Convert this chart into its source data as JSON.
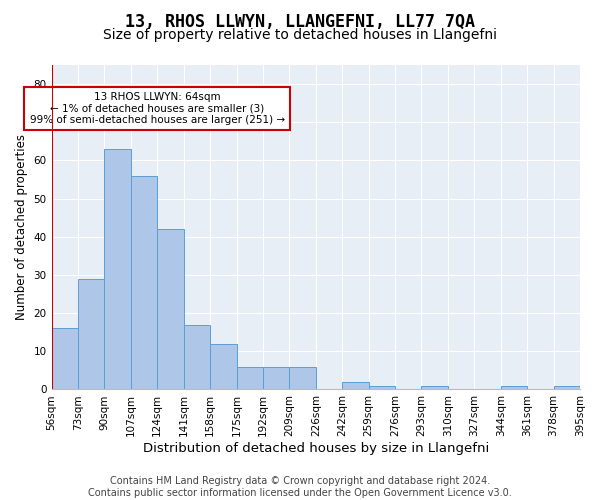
{
  "title": "13, RHOS LLWYN, LLANGEFNI, LL77 7QA",
  "subtitle": "Size of property relative to detached houses in Llangefni",
  "xlabel": "Distribution of detached houses by size in Llangefni",
  "ylabel": "Number of detached properties",
  "bar_values": [
    16,
    29,
    63,
    56,
    42,
    17,
    12,
    6,
    6,
    6,
    0,
    2,
    1,
    0,
    1,
    0,
    0,
    1,
    0,
    1
  ],
  "bar_labels": [
    "56sqm",
    "73sqm",
    "90sqm",
    "107sqm",
    "124sqm",
    "141sqm",
    "158sqm",
    "175sqm",
    "192sqm",
    "209sqm",
    "226sqm",
    "242sqm",
    "259sqm",
    "276sqm",
    "293sqm",
    "310sqm",
    "327sqm",
    "344sqm",
    "361sqm",
    "378sqm"
  ],
  "extra_label": "395sqm",
  "bar_color": "#aec6e8",
  "bar_edge_color": "#5a9fd4",
  "bg_color": "#e8eef6",
  "grid_color": "#ffffff",
  "ylim_max": 85,
  "yticks": [
    0,
    10,
    20,
    30,
    40,
    50,
    60,
    70,
    80
  ],
  "annotation_text": "13 RHOS LLWYN: 64sqm\n← 1% of detached houses are smaller (3)\n99% of semi-detached houses are larger (251) →",
  "annotation_box_facecolor": "#ffffff",
  "annotation_border_color": "#cc0000",
  "red_line_color": "#cc0000",
  "footer": "Contains HM Land Registry data © Crown copyright and database right 2024.\nContains public sector information licensed under the Open Government Licence v3.0.",
  "title_fontsize": 12,
  "subtitle_fontsize": 10,
  "xlabel_fontsize": 9.5,
  "ylabel_fontsize": 8.5,
  "footer_fontsize": 7,
  "tick_fontsize": 7.5,
  "annot_fontsize": 7.5
}
